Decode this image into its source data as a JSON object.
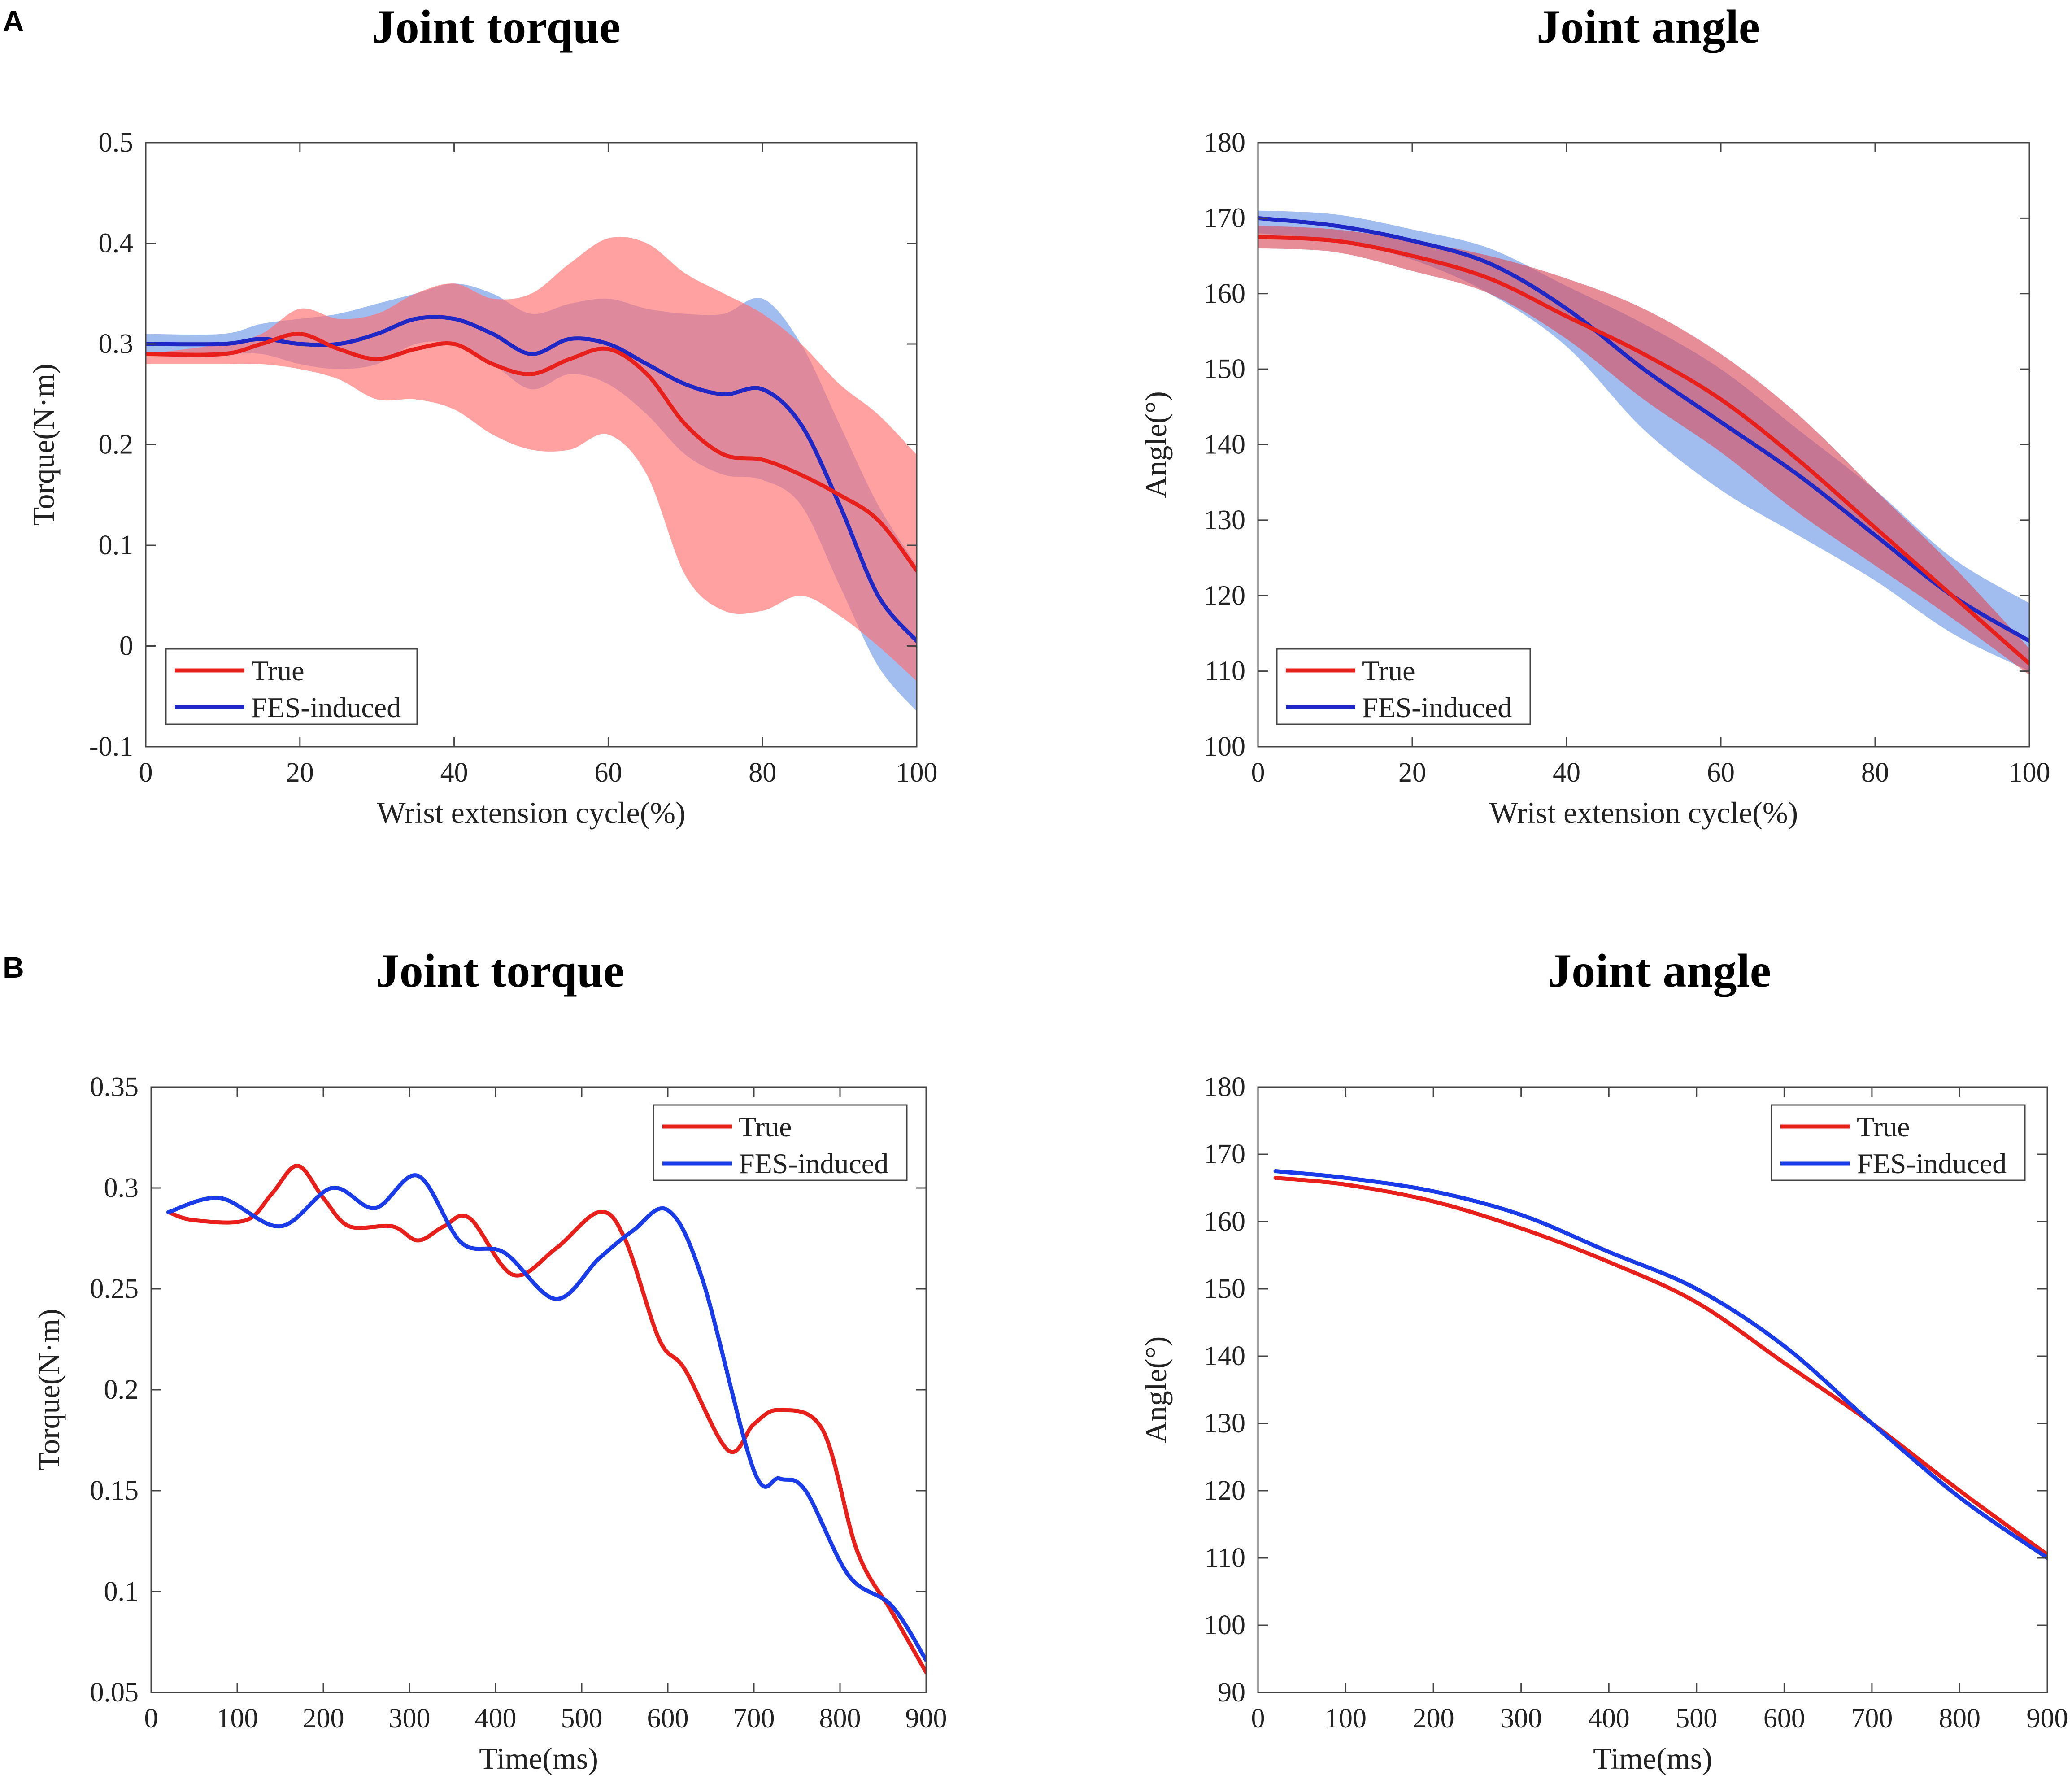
{
  "panels": [
    {
      "letter": "A"
    },
    {
      "letter": "B"
    }
  ],
  "chart_data": [
    {
      "type": "line",
      "panel": "A",
      "title": "Joint torque",
      "xlabel": "Wrist extension cycle(%)",
      "ylabel": "Torque(N·m)",
      "xlim": [
        0,
        100
      ],
      "ylim": [
        -0.1,
        0.5
      ],
      "xticks": [
        0,
        20,
        40,
        60,
        80,
        100
      ],
      "xtick_labels": [
        "0",
        "20",
        "40",
        "60",
        "80",
        "100"
      ],
      "yticks": [
        -0.1,
        0,
        0.1,
        0.2,
        0.3,
        0.4,
        0.5
      ],
      "ytick_labels": [
        "-0.1",
        "0",
        "0.1",
        "0.2",
        "0.3",
        "0.4",
        "0.5"
      ],
      "legend_position": "bottom-left",
      "series": [
        {
          "name": "FES-induced",
          "color": "#1f27c4",
          "band_color": "#6f99e8",
          "x": [
            0,
            10,
            15,
            20,
            25,
            30,
            35,
            40,
            45,
            50,
            55,
            60,
            65,
            70,
            75,
            80,
            85,
            90,
            95,
            100
          ],
          "values": [
            0.3,
            0.3,
            0.305,
            0.3,
            0.3,
            0.31,
            0.325,
            0.325,
            0.31,
            0.29,
            0.305,
            0.3,
            0.28,
            0.26,
            0.25,
            0.255,
            0.22,
            0.14,
            0.05,
            0.005
          ],
          "upper": [
            0.31,
            0.31,
            0.32,
            0.325,
            0.33,
            0.34,
            0.35,
            0.36,
            0.35,
            0.33,
            0.34,
            0.345,
            0.335,
            0.33,
            0.33,
            0.345,
            0.3,
            0.22,
            0.14,
            0.08
          ],
          "lower": [
            0.29,
            0.29,
            0.29,
            0.28,
            0.275,
            0.28,
            0.3,
            0.3,
            0.28,
            0.255,
            0.27,
            0.26,
            0.23,
            0.19,
            0.17,
            0.165,
            0.14,
            0.06,
            -0.02,
            -0.065
          ]
        },
        {
          "name": "True",
          "color": "#e8201c",
          "band_color": "#ff6f6f",
          "x": [
            0,
            10,
            15,
            20,
            25,
            30,
            35,
            40,
            45,
            50,
            55,
            60,
            65,
            70,
            75,
            80,
            85,
            90,
            95,
            100
          ],
          "values": [
            0.29,
            0.29,
            0.3,
            0.31,
            0.295,
            0.285,
            0.295,
            0.3,
            0.28,
            0.27,
            0.285,
            0.295,
            0.27,
            0.22,
            0.19,
            0.185,
            0.17,
            0.15,
            0.125,
            0.075
          ],
          "upper": [
            0.29,
            0.3,
            0.31,
            0.335,
            0.325,
            0.33,
            0.35,
            0.36,
            0.345,
            0.35,
            0.38,
            0.405,
            0.4,
            0.37,
            0.35,
            0.33,
            0.3,
            0.26,
            0.23,
            0.19
          ],
          "lower": [
            0.28,
            0.28,
            0.28,
            0.275,
            0.265,
            0.245,
            0.245,
            0.235,
            0.21,
            0.195,
            0.195,
            0.21,
            0.17,
            0.07,
            0.035,
            0.035,
            0.05,
            0.03,
            0.0,
            -0.035
          ]
        }
      ]
    },
    {
      "type": "line",
      "panel": "A",
      "title": "Joint angle",
      "xlabel": "Wrist extension cycle(%)",
      "ylabel": "Angle(°)",
      "xlim": [
        0,
        100
      ],
      "ylim": [
        100,
        180
      ],
      "xticks": [
        0,
        20,
        40,
        60,
        80,
        100
      ],
      "xtick_labels": [
        "0",
        "20",
        "40",
        "60",
        "80",
        "100"
      ],
      "yticks": [
        100,
        110,
        120,
        130,
        140,
        150,
        160,
        170,
        180
      ],
      "ytick_labels": [
        "100",
        "110",
        "120",
        "130",
        "140",
        "150",
        "160",
        "170",
        "180"
      ],
      "legend_position": "bottom-left",
      "series": [
        {
          "name": "FES-induced",
          "color": "#1f27c4",
          "band_color": "#6f99e8",
          "x": [
            0,
            10,
            20,
            30,
            40,
            50,
            60,
            70,
            80,
            90,
            100
          ],
          "values": [
            170,
            169,
            167,
            164,
            158,
            150,
            143,
            136,
            128,
            120,
            114
          ],
          "upper": [
            171,
            170.5,
            168.5,
            166,
            161,
            156,
            150,
            142,
            134,
            125,
            119
          ],
          "lower": [
            168,
            167,
            164.5,
            160,
            153,
            142,
            134,
            128,
            122,
            115,
            110
          ]
        },
        {
          "name": "True",
          "color": "#e8201c",
          "band_color": "#d85060",
          "x": [
            0,
            10,
            20,
            30,
            40,
            50,
            60,
            70,
            80,
            90,
            100
          ],
          "values": [
            167.5,
            167,
            165,
            162,
            157,
            152,
            146,
            138,
            129,
            120,
            111
          ],
          "upper": [
            169,
            168.5,
            167,
            165,
            162,
            158,
            152,
            144,
            134,
            124,
            113
          ],
          "lower": [
            166,
            165.5,
            163,
            160,
            154,
            146,
            139,
            131,
            124,
            117,
            109.5
          ]
        }
      ]
    },
    {
      "type": "line",
      "panel": "B",
      "title": "Joint torque",
      "xlabel": "Time(ms)",
      "ylabel": "Torque(N·m)",
      "xlim": [
        0,
        900
      ],
      "ylim": [
        0.05,
        0.35
      ],
      "xticks": [
        0,
        100,
        200,
        300,
        400,
        500,
        600,
        700,
        800,
        900
      ],
      "xtick_labels": [
        "0",
        "100",
        "200",
        "300",
        "400",
        "500",
        "600",
        "700",
        "800",
        "900"
      ],
      "yticks": [
        0.05,
        0.1,
        0.15,
        0.2,
        0.25,
        0.3,
        0.35
      ],
      "ytick_labels": [
        "0.05",
        "0.1",
        "0.15",
        "0.2",
        "0.25",
        "0.3",
        "0.35"
      ],
      "legend_position": "top-right",
      "series": [
        {
          "name": "True",
          "color": "#e8201c",
          "x": [
            20,
            50,
            110,
            140,
            170,
            200,
            230,
            280,
            310,
            340,
            370,
            420,
            470,
            520,
            550,
            590,
            620,
            670,
            700,
            730,
            780,
            820,
            860,
            900
          ],
          "values": [
            0.288,
            0.284,
            0.284,
            0.297,
            0.311,
            0.295,
            0.281,
            0.281,
            0.274,
            0.281,
            0.285,
            0.257,
            0.27,
            0.288,
            0.275,
            0.225,
            0.21,
            0.17,
            0.183,
            0.19,
            0.18,
            0.12,
            0.09,
            0.06
          ]
        },
        {
          "name": "FES-induced",
          "color": "#1a3ce8",
          "x": [
            20,
            80,
            150,
            210,
            260,
            310,
            360,
            410,
            470,
            520,
            560,
            600,
            640,
            700,
            730,
            760,
            810,
            860,
            900
          ],
          "values": [
            0.288,
            0.295,
            0.281,
            0.3,
            0.29,
            0.306,
            0.273,
            0.268,
            0.245,
            0.265,
            0.279,
            0.289,
            0.255,
            0.16,
            0.156,
            0.15,
            0.108,
            0.093,
            0.066
          ]
        }
      ]
    },
    {
      "type": "line",
      "panel": "B",
      "title": "Joint angle",
      "xlabel": "Time(ms)",
      "ylabel": "Angle(°)",
      "xlim": [
        0,
        900
      ],
      "ylim": [
        90,
        180
      ],
      "xticks": [
        0,
        100,
        200,
        300,
        400,
        500,
        600,
        700,
        800,
        900
      ],
      "xtick_labels": [
        "0",
        "100",
        "200",
        "300",
        "400",
        "500",
        "600",
        "700",
        "800",
        "900"
      ],
      "yticks": [
        90,
        100,
        110,
        120,
        130,
        140,
        150,
        160,
        170,
        180
      ],
      "ytick_labels": [
        "90",
        "100",
        "110",
        "120",
        "130",
        "140",
        "150",
        "160",
        "170",
        "180"
      ],
      "legend_position": "top-right",
      "series": [
        {
          "name": "True",
          "color": "#e8201c",
          "x": [
            20,
            100,
            200,
            300,
            400,
            500,
            600,
            700,
            800,
            900
          ],
          "values": [
            166.5,
            165.5,
            163,
            159,
            154,
            148,
            139,
            130,
            120,
            110.5
          ]
        },
        {
          "name": "FES-induced",
          "color": "#1a3ce8",
          "x": [
            20,
            100,
            200,
            300,
            400,
            500,
            600,
            700,
            800,
            900
          ],
          "values": [
            167.5,
            166.5,
            164.5,
            161,
            155.5,
            150,
            141.5,
            130,
            119,
            110
          ]
        }
      ]
    }
  ]
}
